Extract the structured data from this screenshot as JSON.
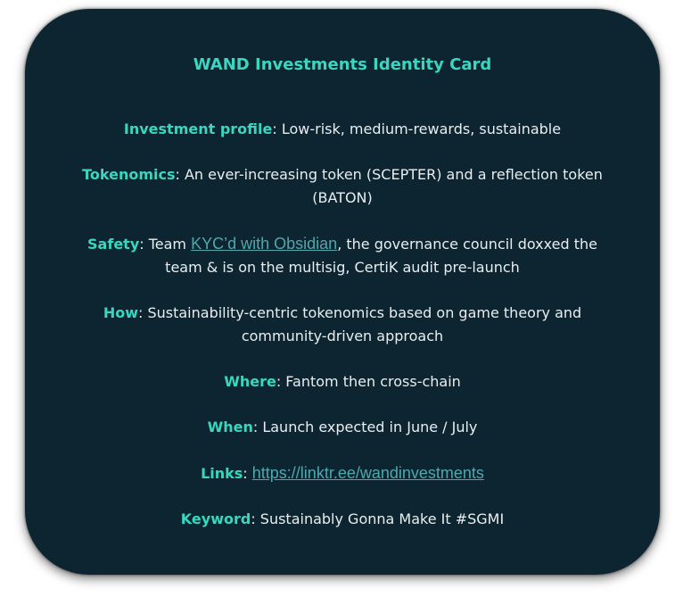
{
  "card": {
    "title": "WAND Investments Identity Card",
    "investment_profile": {
      "label": "Investment profile",
      "value": ": Low-risk, medium-rewards, sustainable"
    },
    "tokenomics": {
      "label": "Tokenomics",
      "value": ": An ever-increasing token (SCEPTER) and a reflection token (BATON)"
    },
    "safety": {
      "label": "Safety",
      "prefix": ": Team ",
      "link_text": "KYC’d with Obsidian",
      "suffix": ", the governance council doxxed the team & is on the multisig, CertiK audit pre-launch"
    },
    "how": {
      "label": "How",
      "value": ": Sustainability-centric tokenomics based on game theory and community-driven approach"
    },
    "where": {
      "label": "Where",
      "value": ": Fantom then cross-chain"
    },
    "when": {
      "label": "When",
      "value": ": Launch expected in June / July"
    },
    "links": {
      "label": "Links",
      "separator": ": ",
      "link_text": "https://linktr.ee/wandinvestments"
    },
    "keyword": {
      "label": "Keyword",
      "value": ": Sustainably Gonna Make It #SGMI"
    }
  },
  "colors": {
    "card_background": "#0d2530",
    "accent": "#3ad6c0",
    "link": "#4fa8ad",
    "text": "#e8eef0"
  }
}
